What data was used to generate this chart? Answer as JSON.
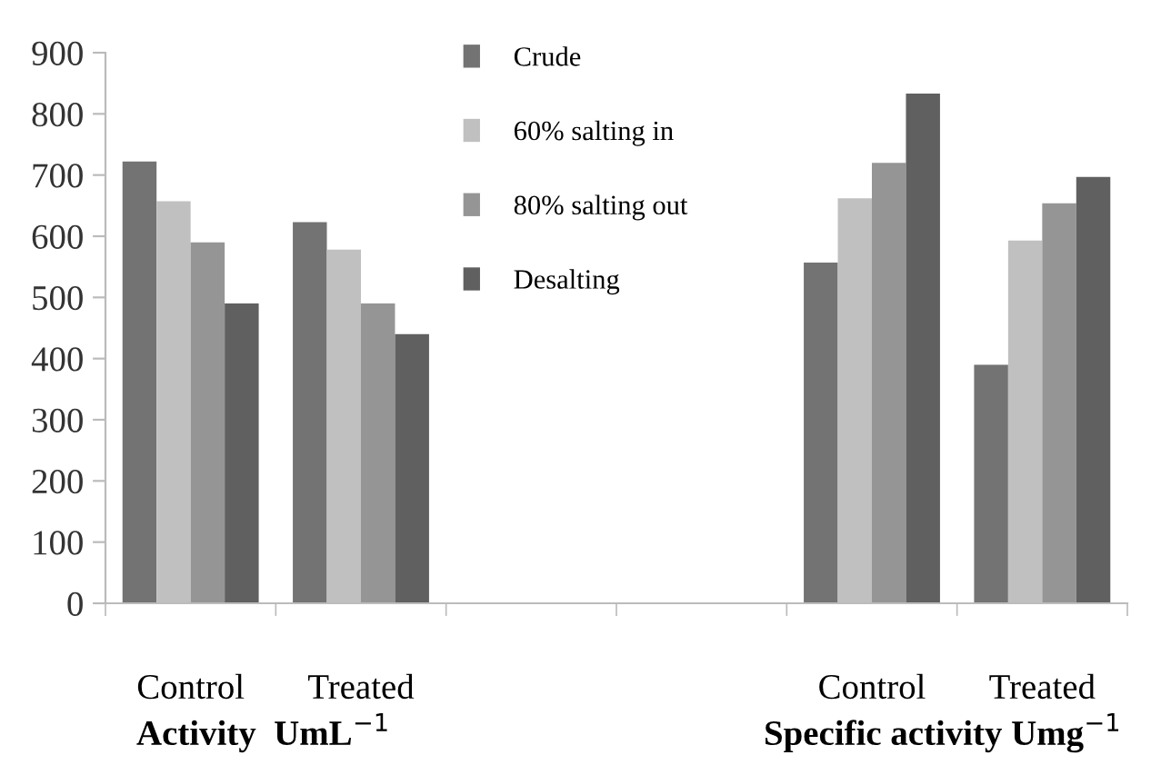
{
  "chart_data": {
    "type": "bar",
    "categories": [
      "Control",
      "Treated",
      null,
      null,
      "Control",
      "Treated"
    ],
    "series": [
      {
        "name": "Crude",
        "color": "#737373",
        "values": [
          722,
          623,
          null,
          null,
          557,
          390
        ]
      },
      {
        "name": "60% salting in",
        "color": "#c0c0c0",
        "values": [
          657,
          578,
          null,
          null,
          662,
          593
        ]
      },
      {
        "name": "80% salting out",
        "color": "#959595",
        "values": [
          590,
          490,
          null,
          null,
          720,
          654
        ]
      },
      {
        "name": "Desalting",
        "color": "#606060",
        "values": [
          490,
          440,
          null,
          null,
          833,
          697
        ]
      }
    ],
    "ylim": [
      0,
      900
    ],
    "yticks": [
      0,
      100,
      200,
      300,
      400,
      500,
      600,
      700,
      800,
      900
    ],
    "grid": false,
    "legend": "top",
    "annotations": [
      "Activity  UmL$^{−1}$",
      "Specific activity Umg$^{−1}$"
    ]
  }
}
